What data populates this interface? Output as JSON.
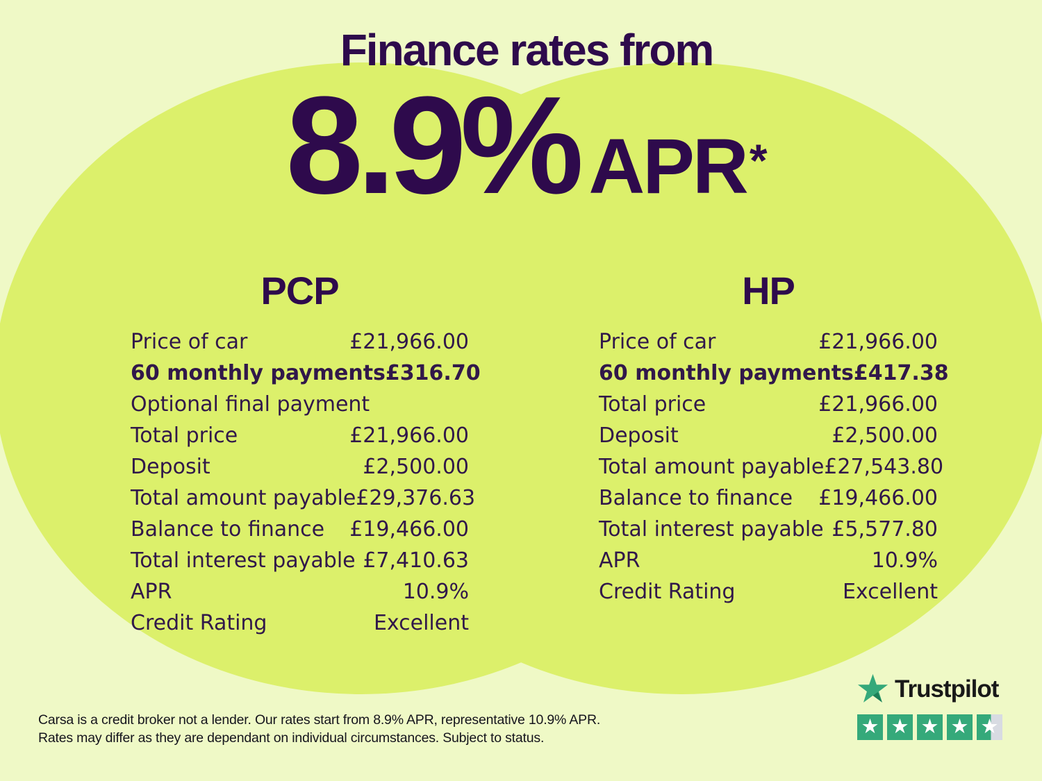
{
  "colors": {
    "background": "#eff9c6",
    "circle": "#dcf06b",
    "heading": "#2e0a4c",
    "table_text": "#31184a",
    "disclaimer_text": "#15151d",
    "trustpilot_green": "#35a97a",
    "trustpilot_green_dark": "#1d7f57",
    "trustpilot_gray": "#d8dbe2",
    "trustpilot_text": "#191919"
  },
  "header": {
    "title": "Finance rates from",
    "rate": "8.9%",
    "unit": "APR",
    "asterisk": "*"
  },
  "pcp": {
    "title": "PCP",
    "rows": [
      {
        "label": "Price of car",
        "value": "£21,966.00"
      },
      {
        "label": "60 monthly payments",
        "value": "£316.70",
        "bold": true
      },
      {
        "label": "Optional final payment",
        "value": ""
      },
      {
        "label": "Total price",
        "value": "£21,966.00"
      },
      {
        "label": "Deposit",
        "value": "£2,500.00"
      },
      {
        "label": "Total amount payable",
        "value": "£29,376.63"
      },
      {
        "label": "Balance to finance",
        "value": "£19,466.00"
      },
      {
        "label": "Total interest payable",
        "value": "£7,410.63"
      },
      {
        "label": "APR",
        "value": "10.9%"
      },
      {
        "label": "Credit Rating",
        "value": "Excellent"
      }
    ]
  },
  "hp": {
    "title": "HP",
    "rows": [
      {
        "label": "Price of car",
        "value": "£21,966.00"
      },
      {
        "label": "60 monthly payments",
        "value": "£417.38",
        "bold": true
      },
      {
        "label": "Total price",
        "value": "£21,966.00"
      },
      {
        "label": "Deposit",
        "value": "£2,500.00"
      },
      {
        "label": "Total amount payable",
        "value": "£27,543.80"
      },
      {
        "label": "Balance to finance",
        "value": "£19,466.00"
      },
      {
        "label": "Total interest payable",
        "value": "£5,577.80"
      },
      {
        "label": "APR",
        "value": "10.9%"
      },
      {
        "label": "Credit Rating",
        "value": "Excellent"
      }
    ]
  },
  "disclaimer": {
    "line1": "Carsa is a credit broker not a lender. Our rates start from 8.9% APR, representative 10.9% APR.",
    "line2": "Rates may differ as they are dependant on individual circumstances. Subject to status."
  },
  "trustpilot": {
    "brand": "Trustpilot",
    "star_glyph": "★",
    "stars": [
      1,
      1,
      1,
      1,
      0.55
    ]
  }
}
